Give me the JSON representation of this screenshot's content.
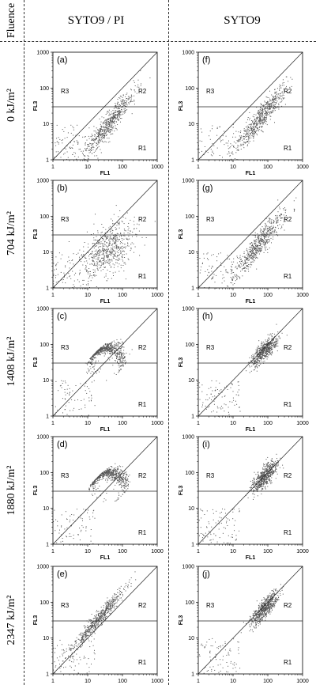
{
  "header": {
    "fluence_label": "Fluence",
    "col1_label": "SYTO9 / PI",
    "col2_label": "SYTO9"
  },
  "rows": [
    {
      "fluence": "0 kJ/m²"
    },
    {
      "fluence": "704 kJ/m²"
    },
    {
      "fluence": "1408 kJ/m²"
    },
    {
      "fluence": "1880 kJ/m²"
    },
    {
      "fluence": "2347 kJ/m²"
    }
  ],
  "chart_data": [
    {
      "type": "scatter",
      "panel_label": "(a)",
      "xlabel": "FL1",
      "ylabel": "FL3",
      "xscale": "log",
      "yscale": "log",
      "xlim": [
        1,
        1000
      ],
      "ylim": [
        1,
        1000
      ],
      "x_ticks": [
        "1",
        "10",
        "100",
        "1000"
      ],
      "y_ticks": [
        "1",
        "10",
        "100",
        "1000"
      ],
      "gate_line_y": 30,
      "diagonal": "y = x",
      "regions": [
        "R1",
        "R2",
        "R3"
      ],
      "cluster": {
        "x_center": 40,
        "y_center": 10,
        "spread": "elongated along diagonal"
      }
    },
    {
      "type": "scatter",
      "panel_label": "(b)",
      "xlabel": "FL1",
      "ylabel": "FL3",
      "xscale": "log",
      "yscale": "log",
      "xlim": [
        1,
        1000
      ],
      "ylim": [
        1,
        1000
      ],
      "x_ticks": [
        "1",
        "10",
        "100",
        "1000"
      ],
      "y_ticks": [
        "1",
        "10",
        "100",
        "1000"
      ],
      "gate_line_y": 30,
      "diagonal": "y = x",
      "regions": [
        "R1",
        "R2",
        "R3"
      ],
      "cluster": {
        "x_center": 40,
        "y_center": 12,
        "spread": "broad halo"
      }
    },
    {
      "type": "scatter",
      "panel_label": "(c)",
      "xlabel": "FL1",
      "ylabel": "FL3",
      "xscale": "log",
      "yscale": "log",
      "xlim": [
        1,
        1000
      ],
      "ylim": [
        1,
        1000
      ],
      "x_ticks": [
        "1",
        "10",
        "100",
        "1000"
      ],
      "y_ticks": [
        "1",
        "10",
        "100",
        "1000"
      ],
      "gate_line_y": 30,
      "diagonal": "y = x",
      "regions": [
        "R1",
        "R2",
        "R3"
      ],
      "cluster": {
        "x_center": 35,
        "y_center": 40,
        "spread": "arc shape"
      }
    },
    {
      "type": "scatter",
      "panel_label": "(d)",
      "xlabel": "FL1",
      "ylabel": "FL3",
      "xscale": "log",
      "yscale": "log",
      "xlim": [
        1,
        1000
      ],
      "ylim": [
        1,
        1000
      ],
      "x_ticks": [
        "1",
        "10",
        "100",
        "1000"
      ],
      "y_ticks": [
        "1",
        "10",
        "100",
        "1000"
      ],
      "gate_line_y": 30,
      "diagonal": "y = x",
      "regions": [
        "R1",
        "R2",
        "R3"
      ],
      "cluster": {
        "x_center": 40,
        "y_center": 50,
        "spread": "large arc"
      }
    },
    {
      "type": "scatter",
      "panel_label": "(e)",
      "xlabel": "FL1",
      "ylabel": "FL3",
      "xscale": "log",
      "yscale": "log",
      "xlim": [
        1,
        1000
      ],
      "ylim": [
        1,
        1000
      ],
      "x_ticks": [
        "1",
        "10",
        "100",
        "1000"
      ],
      "y_ticks": [
        "1",
        "10",
        "100",
        "1000"
      ],
      "gate_line_y": 30,
      "diagonal": "y = x",
      "regions": [
        "R1",
        "R2",
        "R3"
      ],
      "cluster": {
        "x_center": 20,
        "y_center": 35,
        "spread": "narrow band"
      }
    },
    {
      "type": "scatter",
      "panel_label": "(f)",
      "xlabel": "FL1",
      "ylabel": "FL3",
      "xscale": "log",
      "yscale": "log",
      "xlim": [
        1,
        1000
      ],
      "ylim": [
        1,
        1000
      ],
      "x_ticks": [
        "1",
        "10",
        "100",
        "1000"
      ],
      "y_ticks": [
        "1",
        "10",
        "100",
        "1000"
      ],
      "gate_line_y": 30,
      "diagonal": "y = x",
      "regions": [
        "R1",
        "R2",
        "R3"
      ],
      "cluster": {
        "x_center": 60,
        "y_center": 15,
        "spread": "elongated along diagonal"
      }
    },
    {
      "type": "scatter",
      "panel_label": "(g)",
      "xlabel": "FL1",
      "ylabel": "FL3",
      "xscale": "log",
      "yscale": "log",
      "xlim": [
        1,
        1000
      ],
      "ylim": [
        1,
        1000
      ],
      "x_ticks": [
        "1",
        "10",
        "100",
        "1000"
      ],
      "y_ticks": [
        "1",
        "10",
        "100",
        "1000"
      ],
      "gate_line_y": 30,
      "diagonal": "y = x",
      "regions": [
        "R1",
        "R2",
        "R3"
      ],
      "cluster": {
        "x_center": 50,
        "y_center": 15,
        "spread": "elongated along diagonal"
      }
    },
    {
      "type": "scatter",
      "panel_label": "(h)",
      "xlabel": "FL1",
      "ylabel": "FL3",
      "xscale": "log",
      "yscale": "log",
      "xlim": [
        1,
        1000
      ],
      "ylim": [
        1,
        1000
      ],
      "x_ticks": [
        "1",
        "10",
        "100",
        "1000"
      ],
      "y_ticks": [
        "1",
        "10",
        "100",
        "1000"
      ],
      "gate_line_y": 30,
      "diagonal": "y = x",
      "regions": [
        "R1",
        "R2",
        "R3"
      ],
      "cluster": {
        "x_center": 80,
        "y_center": 70,
        "spread": "compact"
      }
    },
    {
      "type": "scatter",
      "panel_label": "(i)",
      "xlabel": "FL1",
      "ylabel": "FL3",
      "xscale": "log",
      "yscale": "log",
      "xlim": [
        1,
        1000
      ],
      "ylim": [
        1,
        1000
      ],
      "x_ticks": [
        "1",
        "10",
        "100",
        "1000"
      ],
      "y_ticks": [
        "1",
        "10",
        "100",
        "1000"
      ],
      "gate_line_y": 30,
      "diagonal": "y = x",
      "regions": [
        "R1",
        "R2",
        "R3"
      ],
      "cluster": {
        "x_center": 80,
        "y_center": 80,
        "spread": "compact"
      }
    },
    {
      "type": "scatter",
      "panel_label": "(j)",
      "xlabel": "FL1",
      "ylabel": "FL3",
      "xscale": "log",
      "yscale": "log",
      "xlim": [
        1,
        1000
      ],
      "ylim": [
        1,
        1000
      ],
      "x_ticks": [
        "1",
        "10",
        "100",
        "1000"
      ],
      "y_ticks": [
        "1",
        "10",
        "100",
        "1000"
      ],
      "gate_line_y": 30,
      "diagonal": "y = x",
      "regions": [
        "R1",
        "R2",
        "R3"
      ],
      "cluster": {
        "x_center": 80,
        "y_center": 70,
        "spread": "compact"
      }
    }
  ],
  "colors": {
    "ink": "#000000",
    "dots": "#555555",
    "lines": "#222222"
  }
}
